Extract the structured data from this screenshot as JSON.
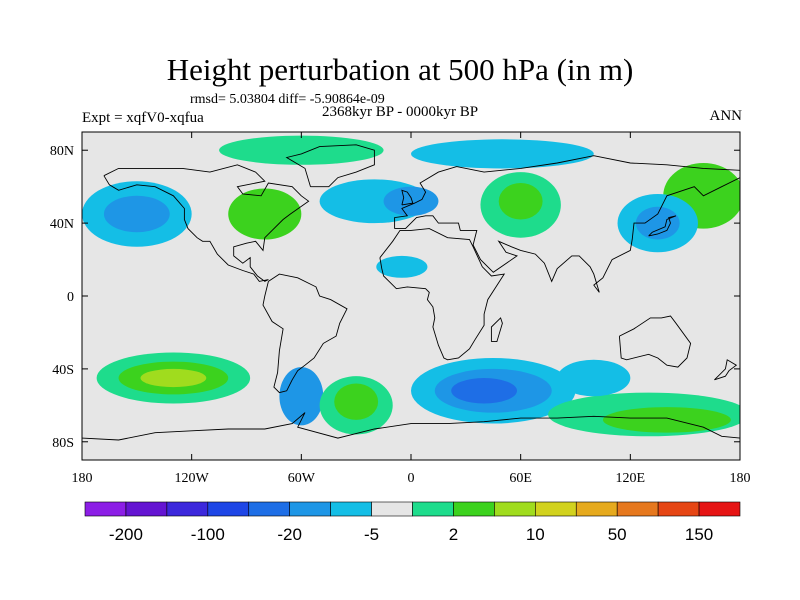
{
  "title": "Height perturbation at 500 hPa (in m)",
  "stats": "rmsd= 5.03804 diff= -5.90864e-09",
  "experiment": "Expt = xqfV0-xqfua",
  "period": "2368kyr BP - 0000kyr BP",
  "season": "ANN",
  "chart_data": {
    "type": "heatmap",
    "title": "Height perturbation at 500 hPa (in m)",
    "projection": "cylindrical equidistant",
    "xlim": [
      -180,
      180
    ],
    "ylim": [
      -90,
      90
    ],
    "x_ticks": [
      {
        "value": -180,
        "label": "180"
      },
      {
        "value": -120,
        "label": "120W"
      },
      {
        "value": -60,
        "label": "60W"
      },
      {
        "value": 0,
        "label": "0"
      },
      {
        "value": 60,
        "label": "60E"
      },
      {
        "value": 120,
        "label": "120E"
      },
      {
        "value": 180,
        "label": "180"
      }
    ],
    "y_ticks": [
      {
        "value": 80,
        "label": "80N"
      },
      {
        "value": 40,
        "label": "40N"
      },
      {
        "value": 0,
        "label": "0"
      },
      {
        "value": -40,
        "label": "40S"
      },
      {
        "value": -80,
        "label": "80S"
      }
    ],
    "colorbar": {
      "colors": [
        "#8c1ee6",
        "#6414d2",
        "#3c28dc",
        "#1e46e6",
        "#1e6ee6",
        "#1e96e6",
        "#14bee6",
        "#e6e6e6",
        "#1edc8c",
        "#3cd21e",
        "#a0dc1e",
        "#d2d21e",
        "#e6aa1e",
        "#e6781e",
        "#e64614",
        "#e61414"
      ],
      "tick_labels": [
        "-200",
        "-100",
        "-20",
        "-5",
        "2",
        "10",
        "50",
        "150"
      ]
    },
    "regions": [
      {
        "lon": -130,
        "lat": -45,
        "rx": 42,
        "ry": 14,
        "level": 8
      },
      {
        "lon": -130,
        "lat": -45,
        "rx": 30,
        "ry": 9,
        "level": 9
      },
      {
        "lon": -130,
        "lat": -45,
        "rx": 18,
        "ry": 5,
        "level": 10
      },
      {
        "lon": -60,
        "lat": -55,
        "rx": 12,
        "ry": 16,
        "level": 5
      },
      {
        "lon": -30,
        "lat": -60,
        "rx": 20,
        "ry": 16,
        "level": 8
      },
      {
        "lon": -30,
        "lat": -58,
        "rx": 12,
        "ry": 10,
        "level": 9
      },
      {
        "lon": 45,
        "lat": -52,
        "rx": 45,
        "ry": 18,
        "level": 6
      },
      {
        "lon": 45,
        "lat": -52,
        "rx": 32,
        "ry": 12,
        "level": 5
      },
      {
        "lon": 40,
        "lat": -52,
        "rx": 18,
        "ry": 7,
        "level": 4
      },
      {
        "lon": 130,
        "lat": -65,
        "rx": 55,
        "ry": 12,
        "level": 8
      },
      {
        "lon": 140,
        "lat": -68,
        "rx": 35,
        "ry": 7,
        "level": 9
      },
      {
        "lon": -150,
        "lat": 45,
        "rx": 30,
        "ry": 18,
        "level": 6
      },
      {
        "lon": -150,
        "lat": 45,
        "rx": 18,
        "ry": 10,
        "level": 5
      },
      {
        "lon": -80,
        "lat": 45,
        "rx": 20,
        "ry": 14,
        "level": 9
      },
      {
        "lon": -20,
        "lat": 52,
        "rx": 30,
        "ry": 12,
        "level": 6
      },
      {
        "lon": 0,
        "lat": 52,
        "rx": 15,
        "ry": 8,
        "level": 5
      },
      {
        "lon": 60,
        "lat": 50,
        "rx": 22,
        "ry": 18,
        "level": 8
      },
      {
        "lon": 60,
        "lat": 52,
        "rx": 12,
        "ry": 10,
        "level": 9
      },
      {
        "lon": 160,
        "lat": 55,
        "rx": 22,
        "ry": 18,
        "level": 9
      },
      {
        "lon": 135,
        "lat": 40,
        "rx": 22,
        "ry": 16,
        "level": 6
      },
      {
        "lon": 135,
        "lat": 40,
        "rx": 12,
        "ry": 9,
        "level": 5
      },
      {
        "lon": -60,
        "lat": 80,
        "rx": 45,
        "ry": 8,
        "level": 8
      },
      {
        "lon": 50,
        "lat": 78,
        "rx": 50,
        "ry": 8,
        "level": 6
      },
      {
        "lon": 100,
        "lat": -45,
        "rx": 20,
        "ry": 10,
        "level": 6
      },
      {
        "lon": -5,
        "lat": 16,
        "rx": 14,
        "ry": 6,
        "level": 6
      }
    ]
  }
}
